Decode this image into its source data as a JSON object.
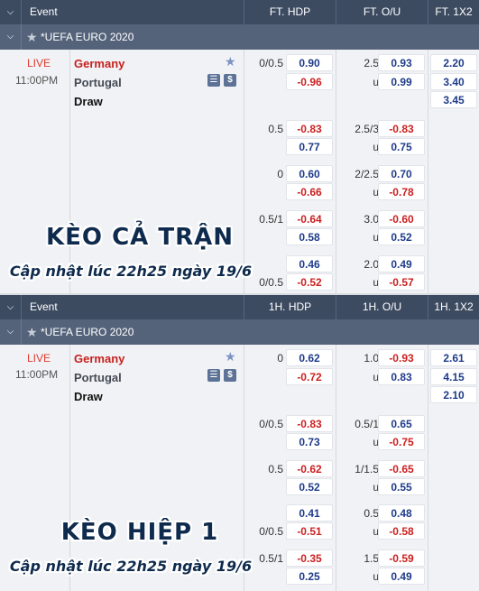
{
  "full": {
    "header": {
      "event": "Event",
      "col1": "FT. HDP",
      "col2": "FT. O/U",
      "col3": "FT. 1X2"
    },
    "league": "*UEFA EURO 2020",
    "match": {
      "status": "LIVE",
      "time": "11:00PM",
      "home": "Germany",
      "away": "Portugal",
      "draw": "Draw"
    },
    "x12": [
      "2.20",
      "3.40",
      "3.45"
    ],
    "rows": [
      {
        "hdp_line": "0/0.5",
        "hdp_home": "0.90",
        "hdp_away": "-0.96",
        "ou_line": "2.5",
        "ou_over": "0.93",
        "ou_u": "u",
        "ou_under": "0.99"
      },
      {
        "hdp_line": "0.5",
        "hdp_home": "-0.83",
        "hdp_away": "0.77",
        "ou_line": "2.5/3",
        "ou_over": "-0.83",
        "ou_u": "u",
        "ou_under": "0.75"
      },
      {
        "hdp_line": "0",
        "hdp_home": "0.60",
        "hdp_away": "-0.66",
        "ou_line": "2/2.5",
        "ou_over": "0.70",
        "ou_u": "u",
        "ou_under": "-0.78"
      },
      {
        "hdp_line": "0.5/1",
        "hdp_home": "-0.64",
        "hdp_away": "0.58",
        "ou_line": "3.0",
        "ou_over": "-0.60",
        "ou_u": "u",
        "ou_under": "0.52"
      },
      {
        "hdp_line": "0/0.5",
        "hdp_home": "0.46",
        "hdp_away": "-0.52",
        "ou_line": "2.0",
        "ou_over": "0.49",
        "ou_u": "u",
        "ou_under": "-0.57"
      }
    ],
    "overlay_title": "KÈO CẢ TRẬN",
    "overlay_sub": "Cập nhật lúc 22h25 ngày 19/6"
  },
  "half": {
    "header": {
      "event": "Event",
      "col1": "1H. HDP",
      "col2": "1H. O/U",
      "col3": "1H. 1X2"
    },
    "league": "*UEFA EURO 2020",
    "match": {
      "status": "LIVE",
      "time": "11:00PM",
      "home": "Germany",
      "away": "Portugal",
      "draw": "Draw"
    },
    "x12": [
      "2.61",
      "4.15",
      "2.10"
    ],
    "rows": [
      {
        "hdp_line": "0",
        "hdp_home": "0.62",
        "hdp_away": "-0.72",
        "ou_line": "1.0",
        "ou_over": "-0.93",
        "ou_u": "u",
        "ou_under": "0.83"
      },
      {
        "hdp_line": "0/0.5",
        "hdp_home": "-0.83",
        "hdp_away": "0.73",
        "ou_line": "0.5/1",
        "ou_over": "0.65",
        "ou_u": "u",
        "ou_under": "-0.75"
      },
      {
        "hdp_line": "0.5",
        "hdp_home": "-0.62",
        "hdp_away": "0.52",
        "ou_line": "1/1.5",
        "ou_over": "-0.65",
        "ou_u": "u",
        "ou_under": "0.55"
      },
      {
        "hdp_line": "0/0.5",
        "hdp_home": "0.41",
        "hdp_away": "-0.51",
        "ou_line": "0.5",
        "ou_over": "0.48",
        "ou_u": "u",
        "ou_under": "-0.58"
      },
      {
        "hdp_line": "0.5/1",
        "hdp_home": "-0.35",
        "hdp_away": "0.25",
        "ou_line": "1.5",
        "ou_over": "-0.59",
        "ou_u": "u",
        "ou_under": "0.49"
      }
    ],
    "overlay_title": "KÈO HIỆP 1",
    "overlay_sub": "Cập nhật lúc 22h25 ngày 19/6"
  },
  "icons": {
    "collapse": "chevron-down-icon",
    "favorite": "star-icon",
    "stats": "stats-icon",
    "money": "dollar-icon"
  },
  "colors": {
    "header_bg": "#3d4b61",
    "league_bg": "#54627a",
    "positive": "#1f3c8a",
    "negative": "#cc1f1f",
    "live": "#e03a2f"
  }
}
